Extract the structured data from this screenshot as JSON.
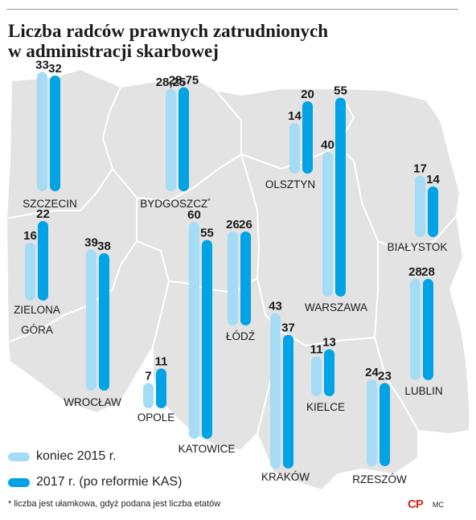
{
  "title_lines": [
    "Liczba radców prawnych zatrudnionych",
    "w administracji skarbowej"
  ],
  "colors": {
    "y2015": "#a5dcf5",
    "y2017": "#00a3e6",
    "map": "#e3e3e3",
    "map_border": "#ffffff"
  },
  "chart_data": {
    "type": "bar",
    "title": "Liczba radców prawnych zatrudnionych w administracji skarbowej",
    "series": [
      {
        "name": "koniec 2015 r.",
        "key": "y2015"
      },
      {
        "name": "2017 r. (po reformie KAS)",
        "key": "y2017"
      }
    ],
    "regions": [
      {
        "name": "SZCZECIN",
        "v2015": 33,
        "v2017": 32,
        "label2015": "33",
        "label2017": "32"
      },
      {
        "name": "BYDGOSZCZ*",
        "v2015": 28.25,
        "v2017": 28.75,
        "label2015": "28,25",
        "label2017": "28,75"
      },
      {
        "name": "OLSZTYN",
        "v2015": 14,
        "v2017": 20,
        "label2015": "14",
        "label2017": "20"
      },
      {
        "name": "WARSZAWA",
        "v2015": 40,
        "v2017": 55,
        "label2015": "40",
        "label2017": "55"
      },
      {
        "name": "BIAŁYSTOK",
        "v2015": 17,
        "v2017": 14,
        "label2015": "17",
        "label2017": "14"
      },
      {
        "name": "ZIELONA GÓRA",
        "v2015": 16,
        "v2017": 22,
        "label2015": "16",
        "label2017": "22"
      },
      {
        "name": "WROCŁAW",
        "v2015": 39,
        "v2017": 38,
        "label2015": "39",
        "label2017": "38"
      },
      {
        "name": "KATOWICE",
        "v2015": 60,
        "v2017": 55,
        "label2015": "60",
        "label2017": "55"
      },
      {
        "name": "ŁÓDŹ",
        "v2015": 26,
        "v2017": 26,
        "label2015": "26",
        "label2017": "26"
      },
      {
        "name": "OPOLE",
        "v2015": 7,
        "v2017": 11,
        "label2015": "7",
        "label2017": "11"
      },
      {
        "name": "KRAKÓW",
        "v2015": 43,
        "v2017": 37,
        "label2015": "43",
        "label2017": "37"
      },
      {
        "name": "KIELCE",
        "v2015": 11,
        "v2017": 13,
        "label2015": "11",
        "label2017": "13"
      },
      {
        "name": "LUBLIN",
        "v2015": 28,
        "v2017": 28,
        "label2015": "28",
        "label2017": "28"
      },
      {
        "name": "RZESZÓW",
        "v2015": 24,
        "v2017": 23,
        "label2015": "24",
        "label2017": "23"
      }
    ]
  },
  "legend": {
    "item_2015": "koniec 2015 r.",
    "item_2017": "2017 r. (po reformie KAS)"
  },
  "footnote": "* liczba jest ułamkowa, gdyż podana jest liczba etatów",
  "logo": {
    "mark": "CP",
    "initials": "MC"
  }
}
